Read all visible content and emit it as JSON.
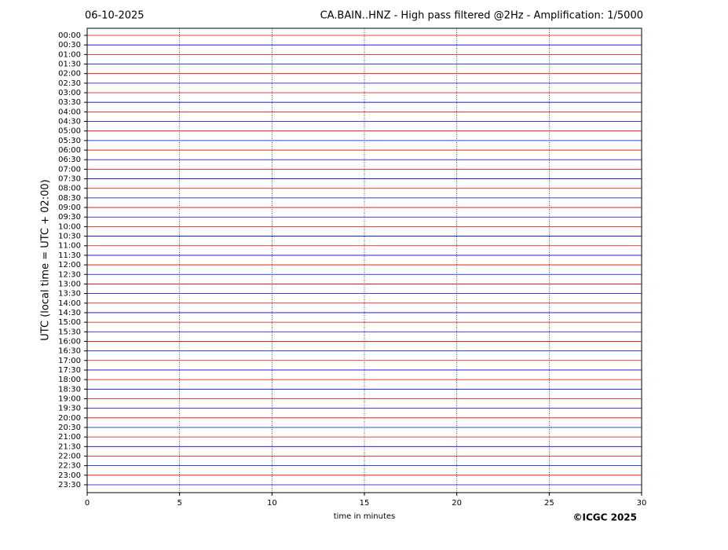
{
  "chart_data": {
    "type": "helicorder",
    "date": "06-10-2025",
    "title": "CA.BAIN..HNZ - High pass filtered @2Hz - Amplification: 1/5000",
    "x_label": "time in minutes",
    "y_label": "UTC (local time = UTC + 02:00)",
    "credit": "©ICGC 2025",
    "categories": [
      "00:00",
      "00:30",
      "01:00",
      "01:30",
      "02:00",
      "02:30",
      "03:00",
      "03:30",
      "04:00",
      "04:30",
      "05:00",
      "05:30",
      "06:00",
      "06:30",
      "07:00",
      "07:30",
      "08:00",
      "08:30",
      "09:00",
      "09:30",
      "10:00",
      "10:30",
      "11:00",
      "11:30",
      "12:00",
      "12:30",
      "13:00",
      "13:30",
      "14:00",
      "14:30",
      "15:00",
      "15:30",
      "16:00",
      "16:30",
      "17:00",
      "17:30",
      "18:00",
      "18:30",
      "19:00",
      "19:30",
      "20:00",
      "20:30",
      "21:00",
      "21:30",
      "22:00",
      "22:30",
      "23:00",
      "23:30"
    ],
    "colors": [
      "#e00000",
      "#0000d0"
    ],
    "xlim": [
      0,
      30
    ],
    "xticks": [
      0,
      5,
      10,
      15,
      20,
      25,
      30
    ],
    "grid": true
  }
}
